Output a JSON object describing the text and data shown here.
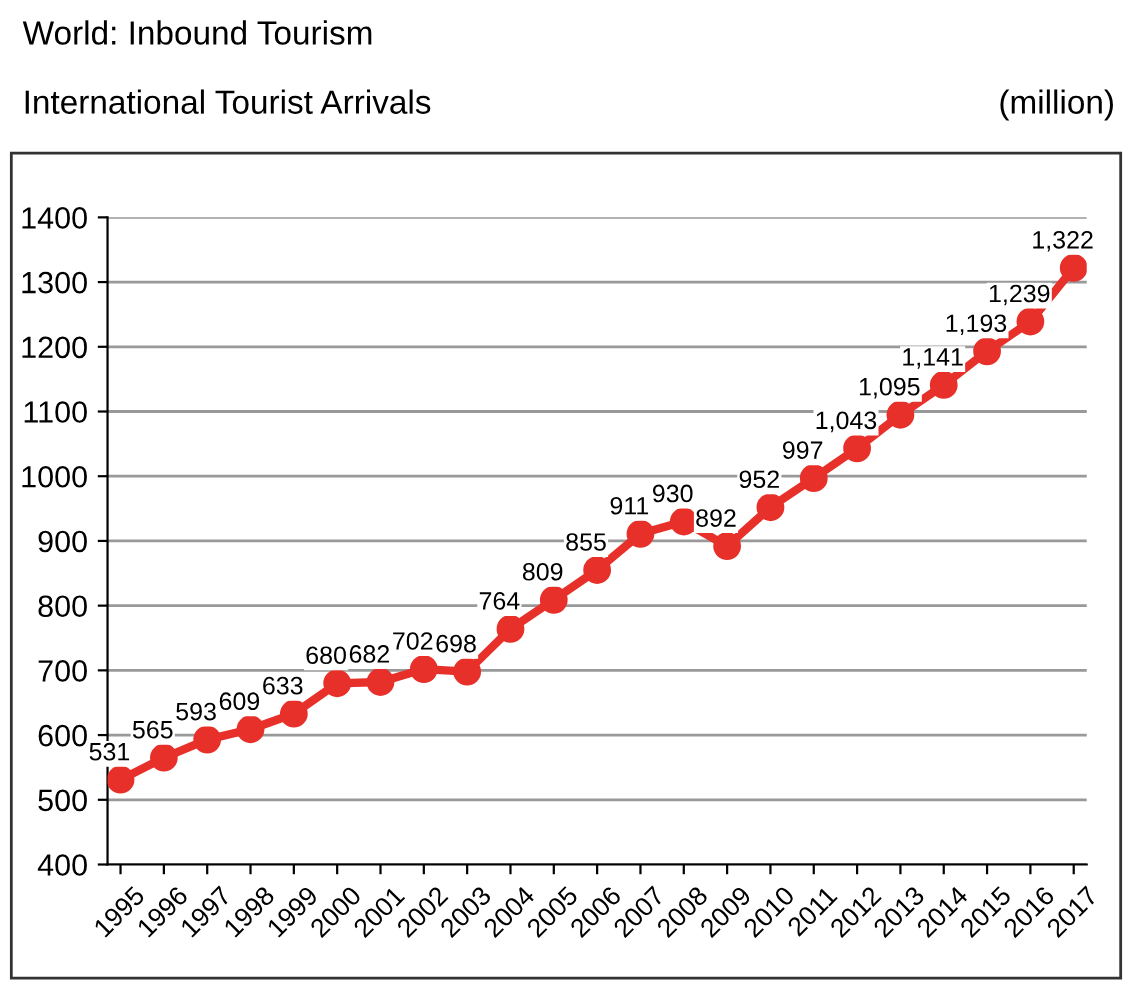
{
  "chart_data": {
    "type": "line",
    "title": "World: Inbound Tourism",
    "subtitle": "International Tourist Arrivals",
    "ylabel": "(million)",
    "categories": [
      "1995",
      "1996",
      "1997",
      "1998",
      "1999",
      "2000",
      "2001",
      "2002",
      "2003",
      "2004",
      "2005",
      "2006",
      "2007",
      "2008",
      "2009",
      "2010",
      "2011",
      "2012",
      "2013",
      "2014",
      "2015",
      "2016",
      "2017"
    ],
    "series": [
      {
        "color": "#e8302a",
        "values": [
          531,
          565,
          593,
          609,
          633,
          680,
          682,
          702,
          698,
          764,
          809,
          855,
          911,
          930,
          892,
          952,
          997,
          1043,
          1095,
          1141,
          1193,
          1239,
          1322
        ],
        "value_labels": [
          "531",
          "565",
          "593",
          "609",
          "633",
          "680",
          "682",
          "702",
          "698",
          "764",
          "809",
          "855",
          "911",
          "930",
          "892",
          "952",
          "997",
          "1,043",
          "1,095",
          "1,141",
          "1,193",
          "1,239",
          "1,322"
        ]
      }
    ],
    "ylim": [
      400,
      1400
    ],
    "yticks": [
      400,
      500,
      600,
      700,
      800,
      900,
      1000,
      1100,
      1200,
      1300,
      1400
    ],
    "grid": "y",
    "marker": "circle",
    "line_style": "solid"
  }
}
